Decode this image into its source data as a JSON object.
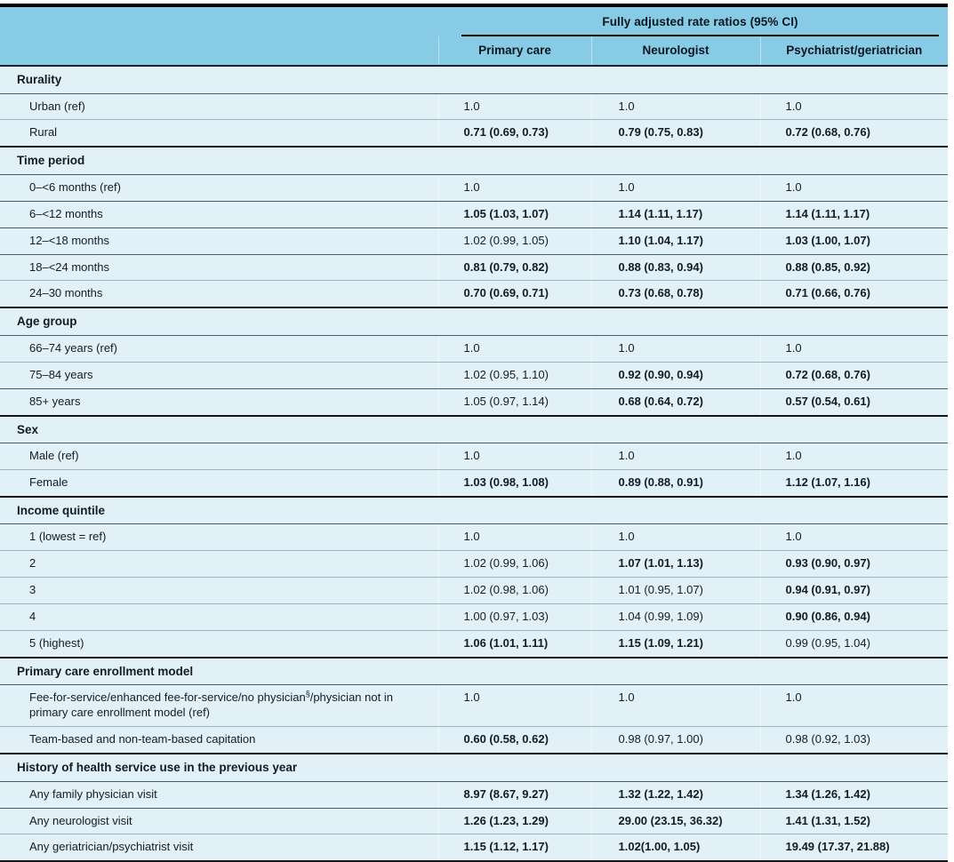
{
  "table": {
    "colors": {
      "header_bg": "#88cbe5",
      "row_bg": "#e2f1f8",
      "text": "#131c24",
      "section_line": "#161616",
      "row_line_light": "#9db3bd",
      "row_line_dark": "#44606e"
    },
    "header": {
      "group_title": "Fully adjusted rate ratios (95% CI)",
      "columns": [
        "Primary care",
        "Neurologist",
        "Psychiatrist/geriatrician"
      ]
    },
    "sections": [
      {
        "title": "Rurality",
        "rows": [
          {
            "label": "Urban (ref)",
            "values": [
              "1.0",
              "1.0",
              "1.0"
            ],
            "bold": [
              false,
              false,
              false
            ]
          },
          {
            "label": "Rural",
            "values": [
              "0.71 (0.69, 0.73)",
              "0.79 (0.75, 0.83)",
              "0.72 (0.68, 0.76)"
            ],
            "bold": [
              true,
              true,
              true
            ]
          }
        ]
      },
      {
        "title": "Time period",
        "rows": [
          {
            "label": "0–<6 months (ref)",
            "values": [
              "1.0",
              "1.0",
              "1.0"
            ],
            "bold": [
              false,
              false,
              false
            ],
            "sep": "dark"
          },
          {
            "label": "6–<12 months",
            "values": [
              "1.05 (1.03, 1.07)",
              "1.14 (1.11, 1.17)",
              "1.14 (1.11, 1.17)"
            ],
            "bold": [
              true,
              true,
              true
            ],
            "sep": "dark"
          },
          {
            "label": "12–<18 months",
            "values": [
              "1.02 (0.99, 1.05)",
              "1.10 (1.04, 1.17)",
              "1.03 (1.00, 1.07)"
            ],
            "bold": [
              false,
              true,
              true
            ],
            "sep": "dark"
          },
          {
            "label": "18–<24 months",
            "values": [
              "0.81 (0.79, 0.82)",
              "0.88 (0.83, 0.94)",
              "0.88 (0.85, 0.92)"
            ],
            "bold": [
              true,
              true,
              true
            ]
          },
          {
            "label": "24–30 months",
            "values": [
              "0.70 (0.69, 0.71)",
              "0.73 (0.68, 0.78)",
              "0.71 (0.66, 0.76)"
            ],
            "bold": [
              true,
              true,
              true
            ]
          }
        ]
      },
      {
        "title": "Age group",
        "rows": [
          {
            "label": "66–74 years (ref)",
            "values": [
              "1.0",
              "1.0",
              "1.0"
            ],
            "bold": [
              false,
              false,
              false
            ]
          },
          {
            "label": "75–84 years",
            "values": [
              "1.02 (0.95, 1.10)",
              "0.92 (0.90, 0.94)",
              "0.72 (0.68, 0.76)"
            ],
            "bold": [
              false,
              true,
              true
            ],
            "sep": "dark"
          },
          {
            "label": "85+ years",
            "values": [
              "1.05 (0.97, 1.14)",
              "0.68 (0.64, 0.72)",
              "0.57 (0.54, 0.61)"
            ],
            "bold": [
              false,
              true,
              true
            ]
          }
        ]
      },
      {
        "title": "Sex",
        "rows": [
          {
            "label": "Male (ref)",
            "values": [
              "1.0",
              "1.0",
              "1.0"
            ],
            "bold": [
              false,
              false,
              false
            ]
          },
          {
            "label": "Female",
            "values": [
              "1.03 (0.98, 1.08)",
              "0.89 (0.88, 0.91)",
              "1.12 (1.07, 1.16)"
            ],
            "bold": [
              true,
              true,
              true
            ]
          }
        ]
      },
      {
        "title": "Income quintile",
        "rows": [
          {
            "label": "1 (lowest = ref)",
            "values": [
              "1.0",
              "1.0",
              "1.0"
            ],
            "bold": [
              false,
              false,
              false
            ]
          },
          {
            "label": "2",
            "values": [
              "1.02 (0.99, 1.06)",
              "1.07 (1.01, 1.13)",
              "0.93 (0.90, 0.97)"
            ],
            "bold": [
              false,
              true,
              true
            ]
          },
          {
            "label": "3",
            "values": [
              "1.02 (0.98, 1.06)",
              "1.01 (0.95, 1.07)",
              "0.94 (0.91, 0.97)"
            ],
            "bold": [
              false,
              false,
              true
            ]
          },
          {
            "label": "4",
            "values": [
              "1.00 (0.97, 1.03)",
              "1.04 (0.99, 1.09)",
              "0.90 (0.86, 0.94)"
            ],
            "bold": [
              false,
              false,
              true
            ]
          },
          {
            "label": "5 (highest)",
            "values": [
              "1.06 (1.01, 1.11)",
              "1.15 (1.09, 1.21)",
              "0.99 (0.95, 1.04)"
            ],
            "bold": [
              true,
              true,
              false
            ]
          }
        ]
      },
      {
        "title": "Primary care enrollment model",
        "rows": [
          {
            "label": "Fee-for-service/enhanced fee-for-service/no physician",
            "sup": "§",
            "label2": "/physician not in primary care enrollment model (ref)",
            "values": [
              "1.0",
              "1.0",
              "1.0"
            ],
            "bold": [
              false,
              false,
              false
            ]
          },
          {
            "label": "Team-based and non-team-based capitation",
            "values": [
              "0.60 (0.58, 0.62)",
              "0.98 (0.97, 1.00)",
              "0.98 (0.92, 1.03)"
            ],
            "bold": [
              true,
              false,
              false
            ]
          }
        ]
      },
      {
        "title": "History of health service use in the previous year",
        "rows": [
          {
            "label": "Any family physician visit",
            "values": [
              "8.97 (8.67, 9.27)",
              "1.32 (1.22, 1.42)",
              "1.34 (1.26, 1.42)"
            ],
            "bold": [
              true,
              true,
              true
            ],
            "sep": "dark"
          },
          {
            "label": "Any neurologist visit",
            "values": [
              "1.26 (1.23, 1.29)",
              "29.00 (23.15, 36.32)",
              "1.41 (1.31, 1.52)"
            ],
            "bold": [
              true,
              true,
              true
            ]
          },
          {
            "label": "Any geriatrician/psychiatrist visit",
            "values": [
              "1.15 (1.12, 1.17)",
              "1.02(1.00, 1.05)",
              "19.49 (17.37, 21.88)"
            ],
            "bold": [
              true,
              true,
              true
            ]
          }
        ]
      }
    ]
  }
}
